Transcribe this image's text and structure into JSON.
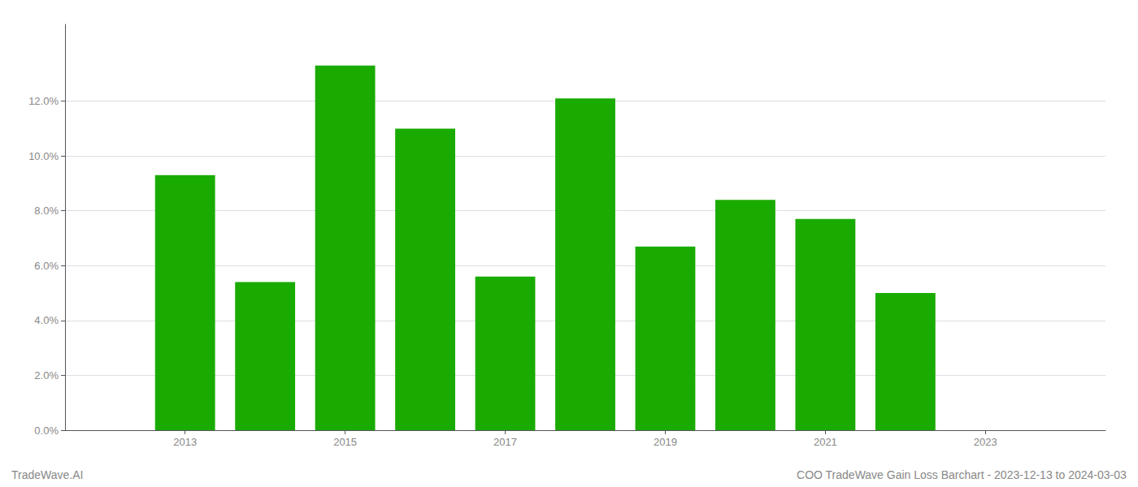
{
  "chart_data": {
    "type": "bar",
    "x": [
      2013,
      2014,
      2015,
      2016,
      2017,
      2018,
      2019,
      2020,
      2021,
      2022
    ],
    "values": [
      0.093,
      0.054,
      0.133,
      0.11,
      0.056,
      0.121,
      0.067,
      0.084,
      0.077,
      0.05
    ],
    "color": "#1aab00",
    "xlim": [
      2011.5,
      2024.5
    ],
    "xticks": [
      2013,
      2015,
      2017,
      2019,
      2021,
      2023
    ],
    "ylim": [
      0.0,
      0.148
    ],
    "yticks": [
      {
        "value": 0.0,
        "label": "0.0%"
      },
      {
        "value": 0.02,
        "label": "2.0%"
      },
      {
        "value": 0.04,
        "label": "4.0%"
      },
      {
        "value": 0.06,
        "label": "6.0%"
      },
      {
        "value": 0.08,
        "label": "8.0%"
      },
      {
        "value": 0.1,
        "label": "10.0%"
      },
      {
        "value": 0.12,
        "label": "12.0%"
      }
    ],
    "grid": true,
    "annotations": [
      "TradeWave.AI",
      "COO TradeWave Gain Loss Barchart - 2023-12-13 to 2024-03-03"
    ]
  }
}
